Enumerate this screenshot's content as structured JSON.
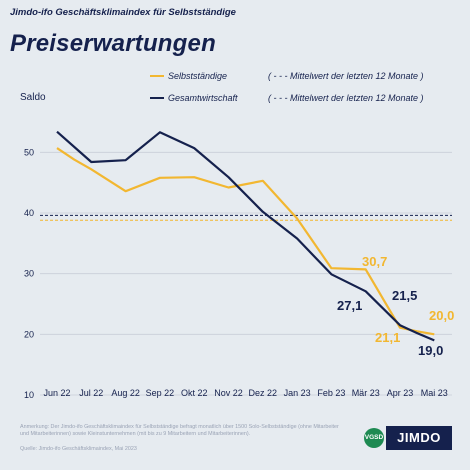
{
  "supertitle": "Jimdo-ifo Geschäftsklimaindex für Selbstständige",
  "title": "Preiserwartungen",
  "chart_data": {
    "type": "line",
    "ylabel": "Saldo",
    "ylim": [
      10,
      55
    ],
    "yticks": [
      10,
      20,
      30,
      40,
      50
    ],
    "x_tick_labels": [
      "Jun 22",
      "Jul 22",
      "Aug 22",
      "Sep 22",
      "Okt 22",
      "Nov 22",
      "Dez 22",
      "Jan 23",
      "Feb 23",
      "Mär 23",
      "Apr 23",
      "Mai 23"
    ],
    "legend": {
      "series_1": "Selbstständige",
      "series_2": "Gesamtwirtschaft",
      "mean_1": "( - - - Mittelwert der letzten 12 Monate )",
      "mean_2": "( - - - Mittelwert der letzten 12 Monate )"
    },
    "series": [
      {
        "name": "Selbstständige",
        "color": "#f2b731",
        "x": [
          0,
          0.5,
          1,
          2,
          3,
          4,
          5,
          6,
          7,
          8,
          9,
          10,
          10.5,
          11
        ],
        "values": [
          50.7,
          48.8,
          47.2,
          43.6,
          45.8,
          45.9,
          44.2,
          45.3,
          39.1,
          30.9,
          30.7,
          21.1,
          20.5,
          20.0
        ],
        "mean": 38.8
      },
      {
        "name": "Gesamtwirtschaft",
        "color": "#15214d",
        "x": [
          0,
          1,
          2,
          3,
          4,
          5,
          6,
          7,
          8,
          9,
          10,
          10.5,
          11
        ],
        "values": [
          53.4,
          48.4,
          48.7,
          53.3,
          50.7,
          45.9,
          40.2,
          35.8,
          29.9,
          27.1,
          21.5,
          20.2,
          19.0
        ],
        "mean": 39.6
      }
    ],
    "data_labels": [
      {
        "text": "30,7",
        "color": "#f2b731"
      },
      {
        "text": "27,1",
        "color": "#15214d"
      },
      {
        "text": "21,5",
        "color": "#15214d"
      },
      {
        "text": "21,1",
        "color": "#f2b731"
      },
      {
        "text": "20,0",
        "color": "#f2b731"
      },
      {
        "text": "19,0",
        "color": "#15214d"
      }
    ]
  },
  "footer": {
    "note": "Anmerkung: Der Jimdo-ifo Geschäftsklimaindex für Selbstständige befragt monatlich über 1500 Solo-Selbstständige (ohne Mitarbeiter und Mitarbeiterinnen) sowie Kleinstunternehmen (mit bis zu 9 Mitarbeitern und Mitarbeiterinnen).",
    "source": "Quelle: Jimdo-ifo Geschäftsklimaindex, Mai 2023"
  },
  "logos": {
    "vgsd": "VGSD",
    "jimdo": "JIMDO"
  }
}
